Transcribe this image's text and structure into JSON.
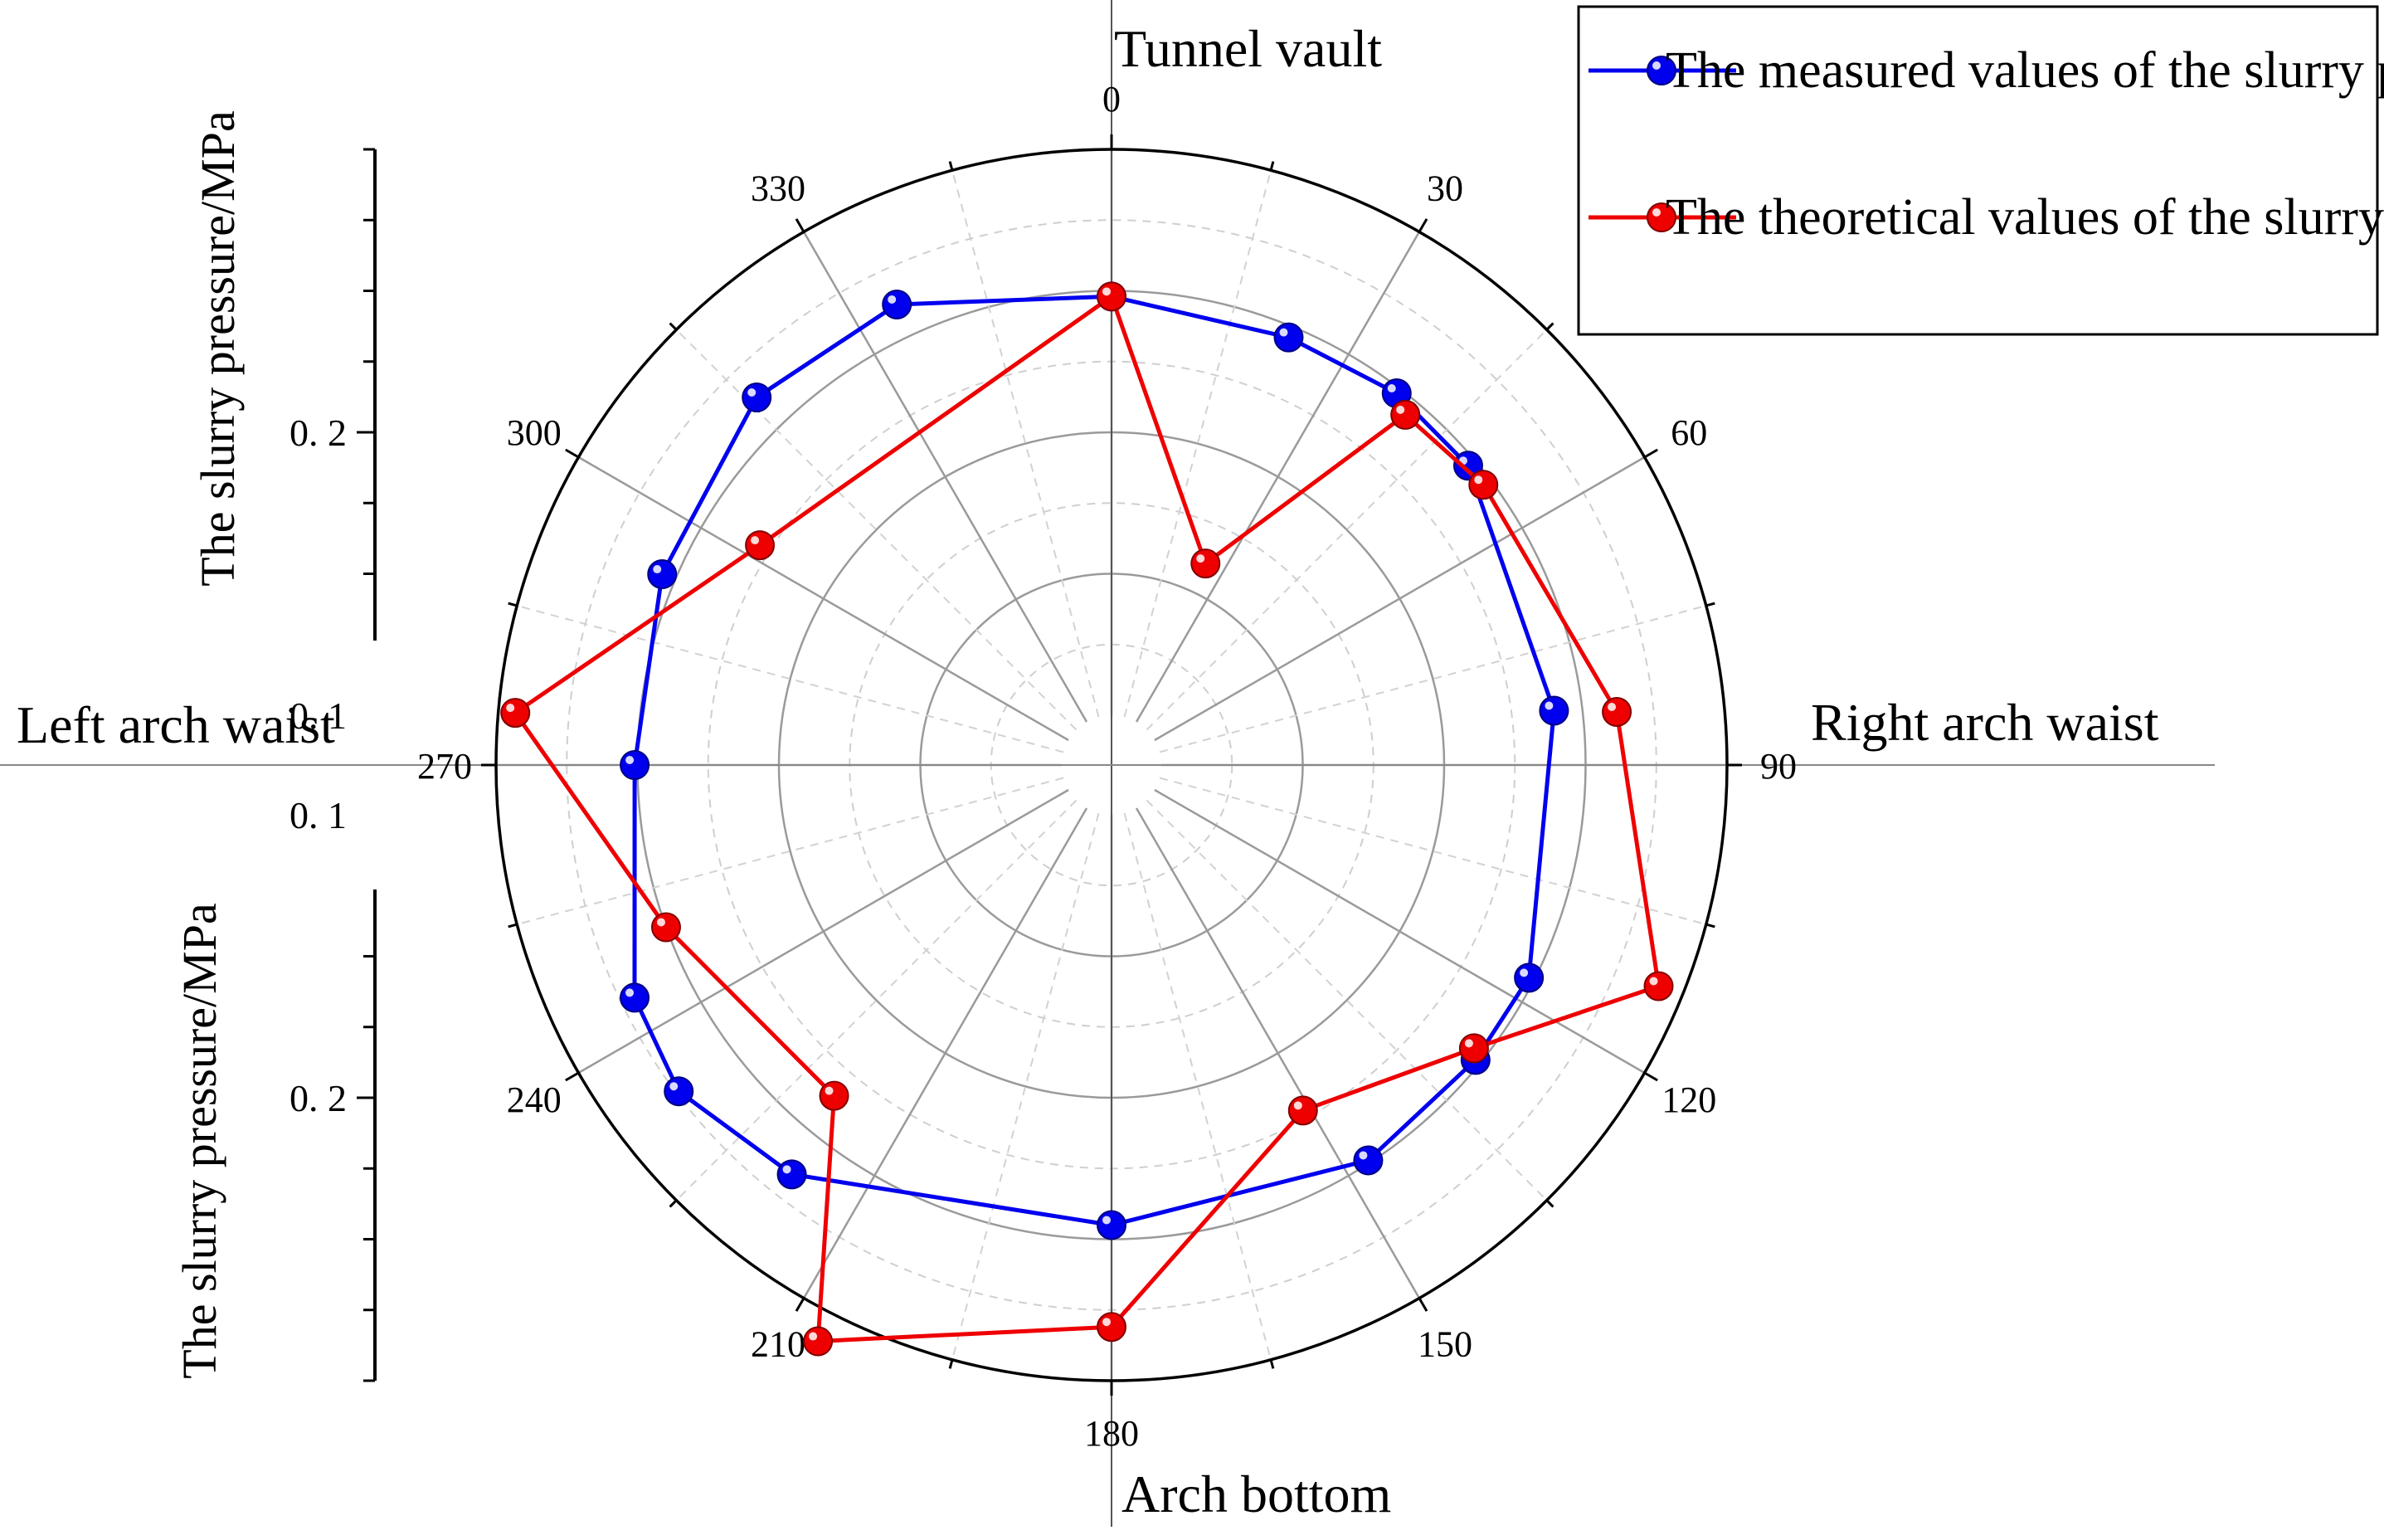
{
  "chart_data": {
    "type": "polar-line",
    "angle_unit": "degrees",
    "angular_ticks": [
      0,
      30,
      60,
      90,
      120,
      150,
      180,
      210,
      240,
      270,
      300,
      330
    ],
    "radial_range": [
      0,
      0.3
    ],
    "radial_origin_inner_radius_value": 0.1,
    "direction_labels": {
      "top": "Tunnel vault",
      "right": "Right arch waist",
      "bottom": "Arch bottom",
      "left": "Left arch waist"
    },
    "radial_axis": {
      "label": "The slurry pressure/MPa",
      "tick_values": [
        0.1,
        0.2
      ],
      "tick_labels": [
        "0. 1",
        "0. 2"
      ]
    },
    "grid": true,
    "legend_position": "top-right",
    "series": [
      {
        "name": "The measured values of the slurry pressure",
        "color": "#0000ee",
        "points": [
          {
            "theta": 0,
            "r": 0.248
          },
          {
            "theta": 22.5,
            "r": 0.246
          },
          {
            "theta": 37.5,
            "r": 0.248
          },
          {
            "theta": 50,
            "r": 0.247
          },
          {
            "theta": 83,
            "r": 0.24
          },
          {
            "theta": 117,
            "r": 0.248
          },
          {
            "theta": 129,
            "r": 0.248
          },
          {
            "theta": 147,
            "r": 0.249
          },
          {
            "theta": 180,
            "r": 0.245
          },
          {
            "theta": 218,
            "r": 0.266
          },
          {
            "theta": 233,
            "r": 0.274
          },
          {
            "theta": 244,
            "r": 0.27
          },
          {
            "theta": 270,
            "r": 0.251
          },
          {
            "theta": 293,
            "r": 0.255
          },
          {
            "theta": 316,
            "r": 0.263
          },
          {
            "theta": 335,
            "r": 0.262
          },
          {
            "theta": 0,
            "r": 0.248
          }
        ]
      },
      {
        "name": "The theoretical values of the slurry pressure",
        "color": "#ee0000",
        "points": [
          {
            "theta": 0,
            "r": 0.248
          },
          {
            "theta": 25,
            "r": 0.161
          },
          {
            "theta": 40,
            "r": 0.244
          },
          {
            "theta": 53,
            "r": 0.247
          },
          {
            "theta": 84,
            "r": 0.262
          },
          {
            "theta": 112,
            "r": 0.291
          },
          {
            "theta": 128,
            "r": 0.245
          },
          {
            "theta": 151,
            "r": 0.222
          },
          {
            "theta": 180,
            "r": 0.281
          },
          {
            "theta": 207,
            "r": 0.311
          },
          {
            "theta": 220,
            "r": 0.235
          },
          {
            "theta": 250,
            "r": 0.25
          },
          {
            "theta": 275,
            "r": 0.294
          },
          {
            "theta": 302,
            "r": 0.229
          },
          {
            "theta": 0,
            "r": 0.248
          }
        ]
      }
    ]
  }
}
